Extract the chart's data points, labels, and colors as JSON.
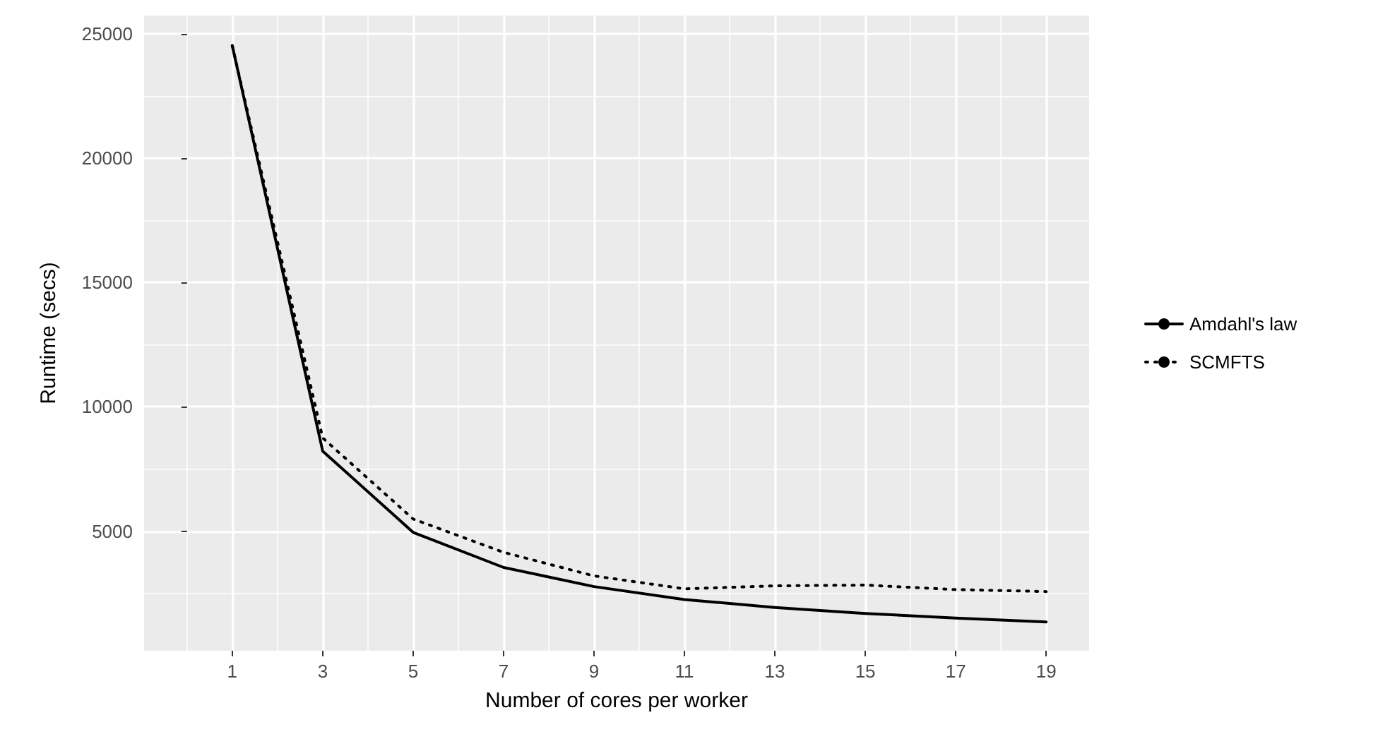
{
  "chart_data": {
    "type": "line",
    "xlabel": "Number of cores per worker",
    "ylabel": "Runtime (secs)",
    "x": [
      1,
      3,
      5,
      7,
      9,
      11,
      13,
      15,
      17,
      19
    ],
    "series": [
      {
        "name": "Amdahl's law",
        "color": "#000000",
        "line_style": "solid",
        "values": [
          24530,
          8220,
          4950,
          3540,
          2770,
          2250,
          1930,
          1690,
          1500,
          1350
        ]
      },
      {
        "name": "SCMFTS",
        "color": "#000000",
        "line_style": "dotted",
        "values": [
          24530,
          8750,
          5490,
          4150,
          3200,
          2680,
          2800,
          2830,
          2650,
          2570
        ]
      }
    ],
    "xlim": [
      -0.95,
      19.95
    ],
    "xticks": [
      1,
      3,
      5,
      7,
      9,
      11,
      13,
      15,
      17,
      19
    ],
    "ylim": [
      190,
      25740
    ],
    "yticks": [
      5000,
      10000,
      15000,
      20000,
      25000
    ],
    "grid": true,
    "legend": "right",
    "marker": "none"
  }
}
